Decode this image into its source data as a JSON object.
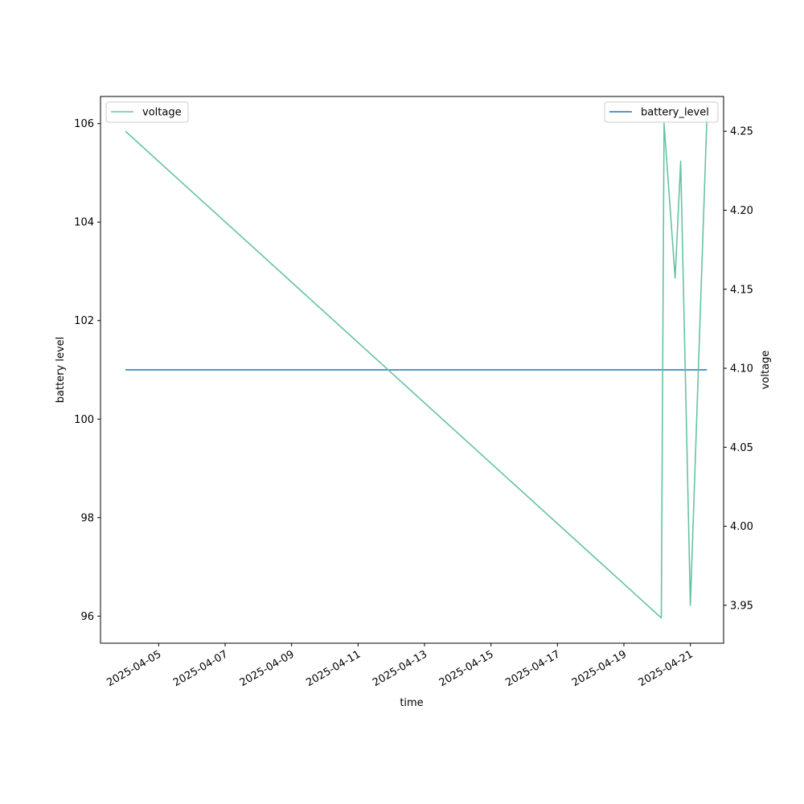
{
  "chart_data": {
    "type": "line",
    "xlabel": "time",
    "ylabel_left": "battery level",
    "ylabel_right": "voltage",
    "x_ticks": [
      "2025-04-05",
      "2025-04-07",
      "2025-04-09",
      "2025-04-11",
      "2025-04-13",
      "2025-04-15",
      "2025-04-17",
      "2025-04-19",
      "2025-04-21"
    ],
    "xlim": [
      "2025-04-03T06:00",
      "2025-04-22T00:00"
    ],
    "left_axis": {
      "ylim": [
        95.45,
        106.55
      ],
      "ticks": [
        96,
        98,
        100,
        102,
        104,
        106
      ]
    },
    "right_axis": {
      "ylim": [
        3.926,
        4.272
      ],
      "ticks": [
        3.95,
        4.0,
        4.05,
        4.1,
        4.15,
        4.2,
        4.25
      ],
      "tick_labels": [
        "3.95",
        "4.00",
        "4.05",
        "4.10",
        "4.15",
        "4.20",
        "4.25"
      ]
    },
    "series": [
      {
        "name": "battery_level",
        "axis": "left",
        "color": "#1f77b4",
        "points": [
          {
            "x": "2025-04-04T00:00",
            "y": 101
          },
          {
            "x": "2025-04-21T12:00",
            "y": 101
          }
        ]
      },
      {
        "name": "voltage",
        "axis": "right",
        "color": "#66c2a5",
        "points": [
          {
            "x": "2025-04-04T00:00",
            "y": 4.25
          },
          {
            "x": "2025-04-20T03:00",
            "y": 3.942
          },
          {
            "x": "2025-04-20T05:00",
            "y": 4.255
          },
          {
            "x": "2025-04-20T13:00",
            "y": 4.157
          },
          {
            "x": "2025-04-20T17:00",
            "y": 4.231
          },
          {
            "x": "2025-04-21T00:00",
            "y": 3.95
          },
          {
            "x": "2025-04-21T12:00",
            "y": 4.26
          }
        ]
      }
    ],
    "legends": [
      {
        "label": "voltage",
        "color": "#66c2a5",
        "placement": "upper-left"
      },
      {
        "label": "battery_level",
        "color": "#1f77b4",
        "placement": "upper-right"
      }
    ],
    "grid": false
  }
}
